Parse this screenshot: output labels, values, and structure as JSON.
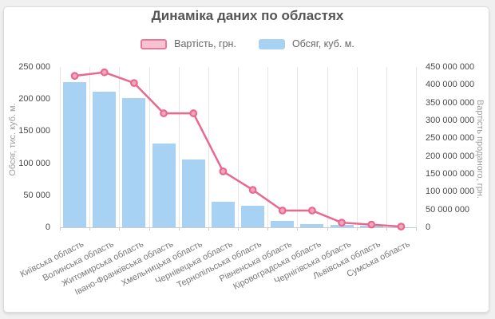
{
  "title": "Динаміка даних по областях",
  "legend": {
    "items": [
      {
        "label": "Вартість, грн.",
        "swatch_fill": "#f7c3d2",
        "swatch_border": "#e8799b"
      },
      {
        "label": "Обсяг, куб. м.",
        "swatch_fill": "#a8d2f2",
        "swatch_border": "#a8d2f2"
      }
    ]
  },
  "chart_data": {
    "type": "bar",
    "subtype": "bar-line-combo",
    "title": "Динаміка даних по областях",
    "categories": [
      "Київська область",
      "Волинська область",
      "Житомирська область",
      "Івано-Франківська область",
      "Хмельницька область",
      "Чернівецька область",
      "Тернопільська область",
      "Рівненська область",
      "Кіровоградська область",
      "Чернігівська область",
      "Львівська область",
      "Сумська область"
    ],
    "series": [
      {
        "name": "Обсяг, куб. м.",
        "kind": "bar",
        "axis": "left",
        "color": "#a7d2f3",
        "values": [
          226000,
          211000,
          201000,
          131000,
          106000,
          40000,
          34000,
          9500,
          5000,
          3500,
          2000,
          400
        ]
      },
      {
        "name": "Вартість, грн.",
        "kind": "line",
        "axis": "right",
        "color": "#e8688e",
        "marker_fill": "#f2a6bd",
        "values": [
          425000000,
          435000000,
          405000000,
          320000000,
          320000000,
          157000000,
          105000000,
          47000000,
          47000000,
          13000000,
          7500000,
          2000000
        ]
      }
    ],
    "ylabel_left": "Обсяг, тис. куб. м.",
    "ylabel_right": "Вартість проданого, грн.",
    "ylim_left": [
      0,
      250000
    ],
    "ytick_step_left": 50000,
    "ylim_right": [
      0,
      450000000
    ],
    "ytick_step_right": 50000000,
    "xlabel": "",
    "grid": "vertical-only",
    "legend_position": "top"
  },
  "colors": {
    "page_bg": "#f0f0f1",
    "card_bg": "#ffffff",
    "card_border": "#dcdcdc",
    "title_text": "#555555",
    "legend_text": "#666666",
    "tick_text": "#4a4a4a",
    "x_label_text": "#777777",
    "axis_title_text": "#9e9e9e",
    "gridline": "#e6e6e6",
    "axis_line": "#cccccc",
    "bar_fill": "#a7d2f3",
    "line_stroke": "#e8688e",
    "marker_fill": "#f2a6bd"
  }
}
